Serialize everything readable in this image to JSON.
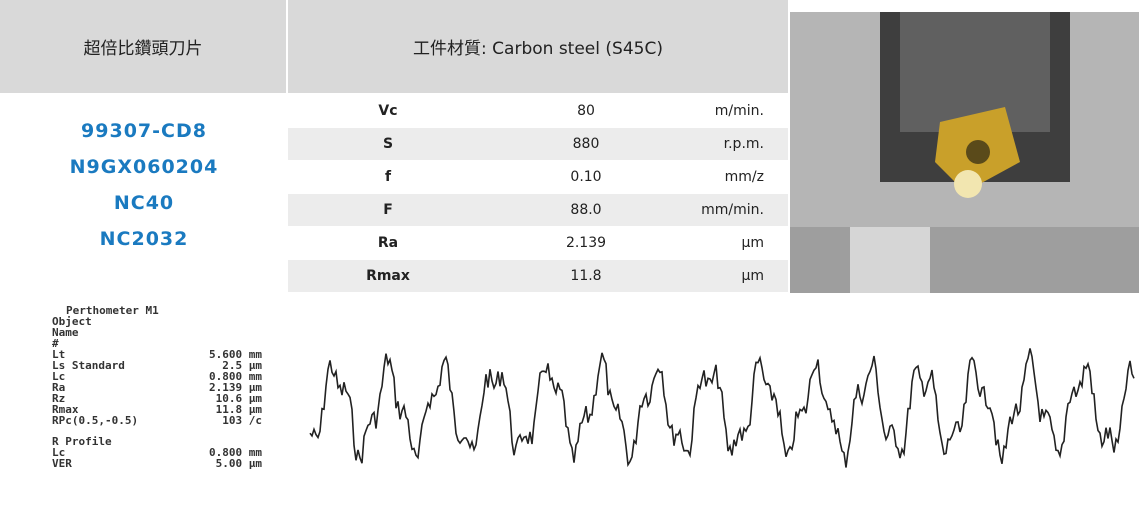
{
  "header": {
    "insert": "超倍比鑽頭刀片",
    "material": "工件材質: Carbon steel (S45C)"
  },
  "codes": [
    "99307-CD8",
    "N9GX060204",
    "NC40",
    "NC2032"
  ],
  "table": {
    "rows": [
      [
        "Vc",
        "80",
        "m/min."
      ],
      [
        "S",
        "880",
        "r.p.m."
      ],
      [
        "f",
        "0.10",
        "mm/z"
      ],
      [
        "F",
        "88.0",
        "mm/min."
      ],
      [
        "Ra",
        "2.139",
        "µm"
      ],
      [
        "Rmax",
        "11.8",
        "µm"
      ]
    ]
  },
  "printout": {
    "title": "Perthometer M1",
    "lines": [
      [
        "Object",
        ""
      ],
      [
        "Name",
        ""
      ],
      [
        "#",
        ""
      ],
      [
        "Lt",
        "5.600 mm"
      ],
      [
        "Ls Standard",
        "2.5 µm"
      ],
      [
        "Lc",
        "0.800 mm"
      ],
      [
        "Ra",
        "2.139 µm"
      ],
      [
        "Rz",
        "10.6 µm"
      ],
      [
        "Rmax",
        "11.8 µm"
      ],
      [
        "RPc(0.5,-0.5)",
        "103 /c"
      ]
    ],
    "section": "R Profile",
    "section_lines": [
      [
        "Lc",
        "0.800 mm"
      ],
      [
        "VER",
        "5.00 µm"
      ]
    ]
  }
}
